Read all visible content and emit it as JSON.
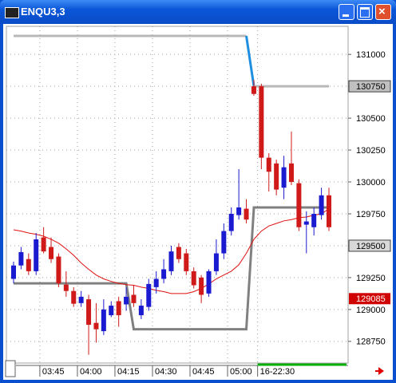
{
  "window": {
    "title": "ENQU3,3"
  },
  "chart_data": {
    "type": "candlestick",
    "categories": [
      null,
      null,
      null,
      "03:45",
      null,
      null,
      null,
      null,
      "04:00",
      null,
      null,
      null,
      null,
      "04:15",
      null,
      null,
      null,
      null,
      "04:30",
      null,
      null,
      null,
      null,
      "04:45",
      null,
      null,
      null,
      null,
      "05:00",
      null,
      null,
      null,
      "16-22:30",
      null,
      null,
      null,
      null,
      null,
      null,
      null,
      null,
      null,
      null
    ],
    "open": [
      129240,
      129345,
      129395,
      129300,
      129565,
      129490,
      129415,
      129195,
      129145,
      129050,
      129080,
      128895,
      128830,
      128955,
      129065,
      129040,
      129115,
      128955,
      129020,
      129175,
      129240,
      129300,
      129490,
      129440,
      129300,
      129250,
      129125,
      129300,
      129440,
      129615,
      129740,
      129790,
      130750,
      130750,
      130190,
      130145,
      129955,
      130145,
      129990,
      129665,
      129645,
      129740,
      129895
    ],
    "high": [
      129375,
      129490,
      129440,
      129600,
      129645,
      129565,
      129440,
      129300,
      129175,
      129145,
      129115,
      129050,
      129080,
      129065,
      129100,
      129175,
      129190,
      129080,
      129240,
      129300,
      129395,
      129500,
      129520,
      129475,
      129330,
      129270,
      129315,
      129550,
      129675,
      129800,
      130100,
      129865,
      130800,
      130770,
      130225,
      130175,
      130205,
      130395,
      130020,
      129770,
      129800,
      129955,
      129955
    ],
    "low": [
      129205,
      129315,
      129270,
      129270,
      129440,
      129365,
      129175,
      129100,
      129020,
      129020,
      128645,
      128740,
      128800,
      128940,
      128865,
      128990,
      129020,
      128925,
      128990,
      129125,
      129205,
      129270,
      129365,
      129270,
      129165,
      129050,
      129100,
      129270,
      129395,
      129580,
      129705,
      129675,
      130675,
      130100,
      129925,
      129895,
      129865,
      129975,
      129615,
      129440,
      129580,
      129705,
      129615
    ],
    "close": [
      129345,
      129450,
      129300,
      129550,
      129455,
      129395,
      129205,
      129145,
      129045,
      129100,
      128880,
      128845,
      129000,
      129030,
      128955,
      129100,
      129050,
      129030,
      129200,
      129240,
      129315,
      129455,
      129395,
      129300,
      129190,
      129115,
      129300,
      129440,
      129615,
      129750,
      129800,
      129705,
      130690,
      130190,
      130080,
      129940,
      130115,
      130000,
      129645,
      129690,
      129750,
      129895,
      129645
    ],
    "up_color": "#1a1ad0",
    "down_color": "#d01a1a",
    "overlays": [
      {
        "color": "#b8b8b8",
        "values": [
          131145,
          131145,
          131145,
          131145,
          131145,
          131145,
          131145,
          131145,
          131145,
          131145,
          131145,
          131145,
          131145,
          131145,
          131145,
          131145,
          131145,
          131145,
          131145,
          131145,
          131145,
          131145,
          131145,
          131145,
          131145,
          131145,
          131145,
          131145,
          131145,
          131145,
          131145,
          131145,
          null,
          null,
          null,
          null,
          null,
          null,
          null,
          null,
          null,
          null,
          null
        ]
      },
      {
        "color": "#1e8fe0",
        "values": [
          null,
          null,
          null,
          null,
          null,
          null,
          null,
          null,
          null,
          null,
          null,
          null,
          null,
          null,
          null,
          null,
          null,
          null,
          null,
          null,
          null,
          null,
          null,
          null,
          null,
          null,
          null,
          null,
          null,
          null,
          null,
          131145,
          130750,
          null,
          null,
          null,
          null,
          null,
          null,
          null,
          null,
          null,
          null
        ]
      },
      {
        "color": "#b8b8b8",
        "values": [
          null,
          null,
          null,
          null,
          null,
          null,
          null,
          null,
          null,
          null,
          null,
          null,
          null,
          null,
          null,
          null,
          null,
          null,
          null,
          null,
          null,
          null,
          null,
          null,
          null,
          null,
          null,
          null,
          null,
          null,
          null,
          null,
          130750,
          130750,
          130750,
          130750,
          130750,
          130750,
          130750,
          130750,
          130750,
          130750,
          130750
        ]
      },
      {
        "color": "#808080",
        "values": [
          129205,
          129205,
          129205,
          129205,
          129205,
          129205,
          129205,
          129205,
          129205,
          129205,
          129205,
          129205,
          129205,
          129205,
          129205,
          129205,
          128845,
          128845,
          128845,
          128845,
          128845,
          128845,
          128845,
          128845,
          128845,
          128845,
          128845,
          128845,
          128845,
          128845,
          128845,
          128845,
          129800,
          129800,
          129800,
          129800,
          129800,
          129800,
          129800,
          129800,
          129800,
          129800,
          129800
        ]
      },
      {
        "color": "#e01010",
        "thin": true,
        "values": [
          129625,
          129615,
          129600,
          129590,
          129575,
          129550,
          129520,
          129475,
          129425,
          129365,
          129315,
          129270,
          129240,
          129220,
          129205,
          129195,
          129190,
          129175,
          129165,
          129150,
          129140,
          129125,
          129125,
          129125,
          129140,
          129165,
          129200,
          129240,
          129270,
          129300,
          129350,
          129440,
          129550,
          129615,
          129655,
          129675,
          129695,
          129705,
          129720,
          129725,
          129740,
          129750,
          129790
        ]
      }
    ],
    "ylim": [
      128580,
      131220
    ],
    "yticks": [
      128750,
      129000,
      129250,
      129500,
      129750,
      130000,
      130250,
      130500,
      130750,
      131000
    ],
    "tick_boxes": [
      {
        "value": 130750,
        "fill": "#c0c0c0"
      },
      {
        "value": 129500,
        "fill": "#d8d8d8"
      }
    ],
    "last_price": 129085,
    "last_price_color": "#d00000",
    "grid": true
  }
}
